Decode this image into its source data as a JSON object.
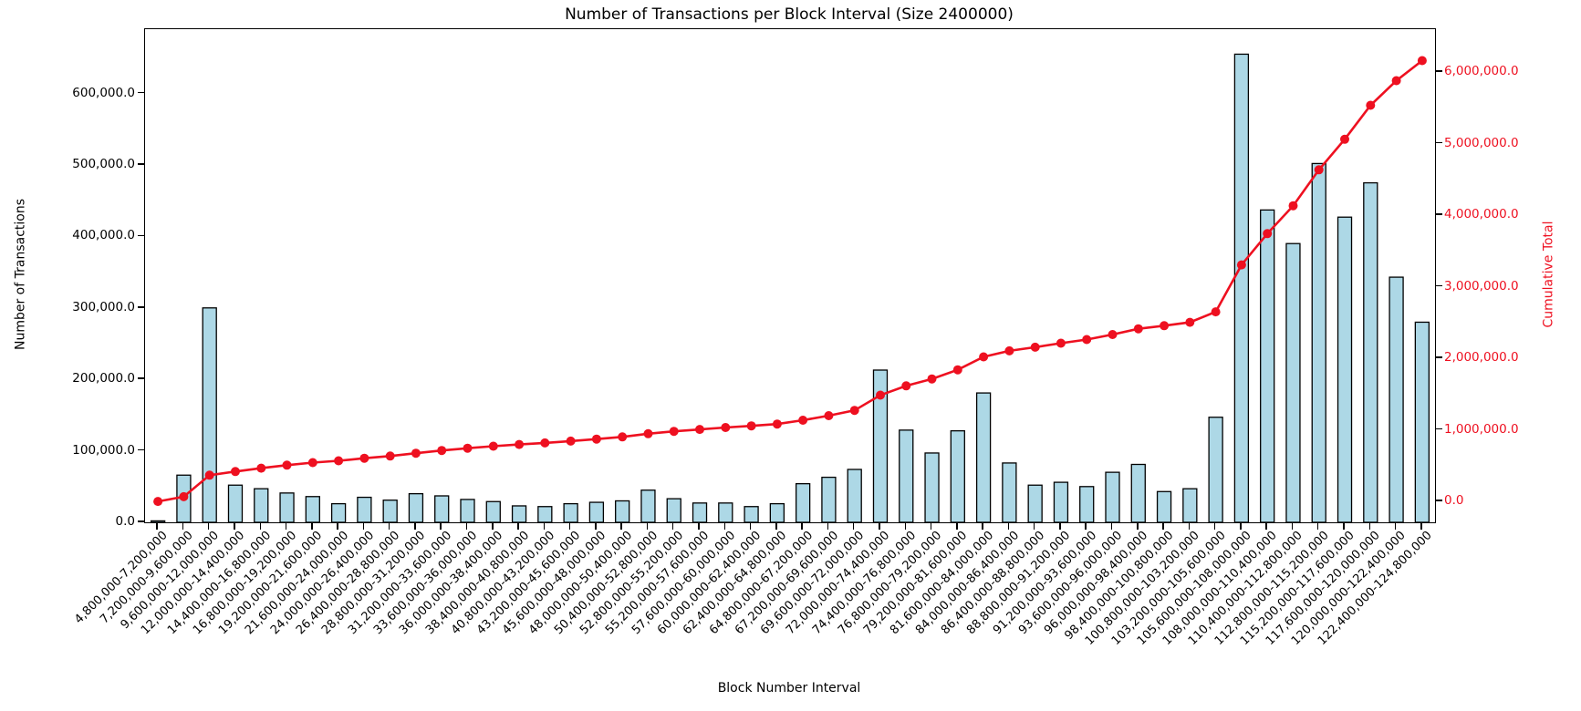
{
  "title": "Number of Transactions per Block Interval (Size 2400000)",
  "chart_data": {
    "type": "bar",
    "title": "Number of Transactions per Block Interval (Size 2400000)",
    "xlabel": "Block Number Interval",
    "ylabel_left": "Number of Transactions",
    "ylabel_right": "Cumulative Total",
    "grid": false,
    "legend": "none",
    "categories": [
      "4,800,000-7,200,000",
      "7,200,000-9,600,000",
      "9,600,000-12,000,000",
      "12,000,000-14,400,000",
      "14,400,000-16,800,000",
      "16,800,000-19,200,000",
      "19,200,000-21,600,000",
      "21,600,000-24,000,000",
      "24,000,000-26,400,000",
      "26,400,000-28,800,000",
      "28,800,000-31,200,000",
      "31,200,000-33,600,000",
      "33,600,000-36,000,000",
      "36,000,000-38,400,000",
      "38,400,000-40,800,000",
      "40,800,000-43,200,000",
      "43,200,000-45,600,000",
      "45,600,000-48,000,000",
      "48,000,000-50,400,000",
      "50,400,000-52,800,000",
      "52,800,000-55,200,000",
      "55,200,000-57,600,000",
      "57,600,000-60,000,000",
      "60,000,000-62,400,000",
      "62,400,000-64,800,000",
      "64,800,000-67,200,000",
      "67,200,000-69,600,000",
      "69,600,000-72,000,000",
      "72,000,000-74,400,000",
      "74,400,000-76,800,000",
      "76,800,000-79,200,000",
      "79,200,000-81,600,000",
      "81,600,000-84,000,000",
      "84,000,000-86,400,000",
      "86,400,000-88,800,000",
      "88,800,000-91,200,000",
      "91,200,000-93,600,000",
      "93,600,000-96,000,000",
      "96,000,000-98,400,000",
      "98,400,000-100,800,000",
      "100,800,000-103,200,000",
      "103,200,000-105,600,000",
      "105,600,000-108,000,000",
      "108,000,000-110,400,000",
      "110,400,000-112,800,000",
      "112,800,000-115,200,000",
      "115,200,000-117,600,000",
      "117,600,000-120,000,000",
      "120,000,000-122,400,000",
      "122,400,000-124,800,000"
    ],
    "series": [
      {
        "name": "Number of Transactions",
        "type": "bar",
        "axis": "left",
        "color": "#add8e6",
        "edge_color": "#000000",
        "values": [
          2000,
          66000,
          300000,
          52000,
          47000,
          41000,
          36000,
          26000,
          35000,
          31000,
          40000,
          37000,
          32000,
          29000,
          23000,
          22000,
          26000,
          28000,
          30000,
          45000,
          33000,
          27000,
          27000,
          22000,
          26000,
          54000,
          63000,
          74000,
          213000,
          129000,
          97000,
          128000,
          181000,
          83000,
          52000,
          56000,
          50000,
          70000,
          81000,
          43000,
          47000,
          147000,
          655000,
          437000,
          390000,
          502000,
          427000,
          475000,
          343000,
          280000
        ]
      },
      {
        "name": "Cumulative Total",
        "type": "line",
        "axis": "right",
        "color": "#ee1020",
        "marker": "circle",
        "values": [
          2000,
          68000,
          368000,
          420000,
          467000,
          508000,
          544000,
          570000,
          605000,
          636000,
          676000,
          713000,
          745000,
          774000,
          797000,
          819000,
          845000,
          873000,
          903000,
          948000,
          981000,
          1008000,
          1035000,
          1057000,
          1083000,
          1137000,
          1200000,
          1274000,
          1487000,
          1616000,
          1713000,
          1841000,
          2022000,
          2105000,
          2157000,
          2213000,
          2263000,
          2333000,
          2414000,
          2457000,
          2504000,
          2651000,
          3306000,
          3743000,
          4133000,
          4635000,
          5062000,
          5537000,
          5880000,
          6160000
        ]
      }
    ],
    "left_axis": {
      "min": 0,
      "max": 690000,
      "tick_values": [
        0,
        100000,
        200000,
        300000,
        400000,
        500000,
        600000
      ],
      "tick_labels": [
        "0.0",
        "100,000.0",
        "200,000.0",
        "300,000.0",
        "400,000.0",
        "500,000.0",
        "600,000.0"
      ],
      "color": "#000000"
    },
    "right_axis": {
      "min": -290000,
      "max": 6600000,
      "tick_values": [
        0,
        1000000,
        2000000,
        3000000,
        4000000,
        5000000,
        6000000
      ],
      "tick_labels": [
        "0.0",
        "1,000,000.0",
        "2,000,000.0",
        "3,000,000.0",
        "4,000,000.0",
        "5,000,000.0",
        "6,000,000.0"
      ],
      "color": "#ee1020"
    }
  }
}
